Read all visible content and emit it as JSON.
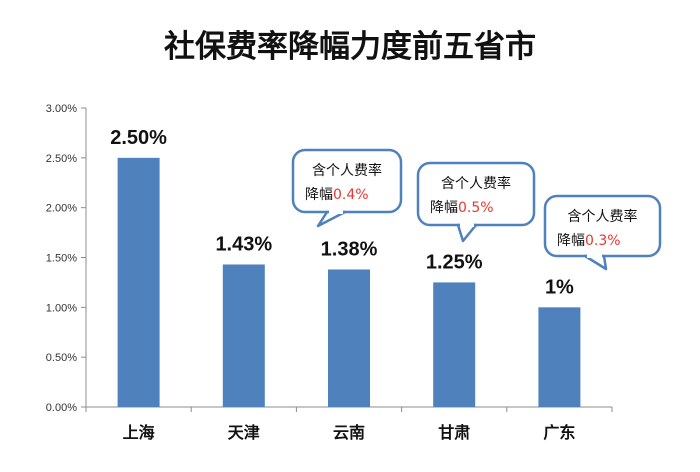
{
  "chart_data": {
    "type": "bar",
    "title": "社保费率降幅力度前五省市",
    "categories": [
      "上海",
      "天津",
      "云南",
      "甘肃",
      "广东"
    ],
    "values": [
      2.5,
      1.43,
      1.38,
      1.25,
      1.0
    ],
    "data_labels": [
      "2.50%",
      "1.43%",
      "1.38%",
      "1.25%",
      "1%"
    ],
    "ylim": [
      0,
      3
    ],
    "yticks": [
      "0.00%",
      "0.50%",
      "1.00%",
      "1.50%",
      "2.00%",
      "2.50%",
      "3.00%"
    ],
    "xlabel": "",
    "ylabel": "",
    "grid": false,
    "bar_color": "#4f81bd",
    "annotations": [
      {
        "category": "云南",
        "line1": "含个人费率",
        "line2_prefix": "降幅",
        "line2_value": "0.4%"
      },
      {
        "category": "甘肃",
        "line1": "含个人费率",
        "line2_prefix": "降幅",
        "line2_value": "0.5%"
      },
      {
        "category": "广东",
        "line1": "含个人费率",
        "line2_prefix": "降幅",
        "line2_value": "0.3%"
      }
    ],
    "annotation_border_color": "#4f81bd",
    "annotation_value_color": "#e8372f"
  }
}
